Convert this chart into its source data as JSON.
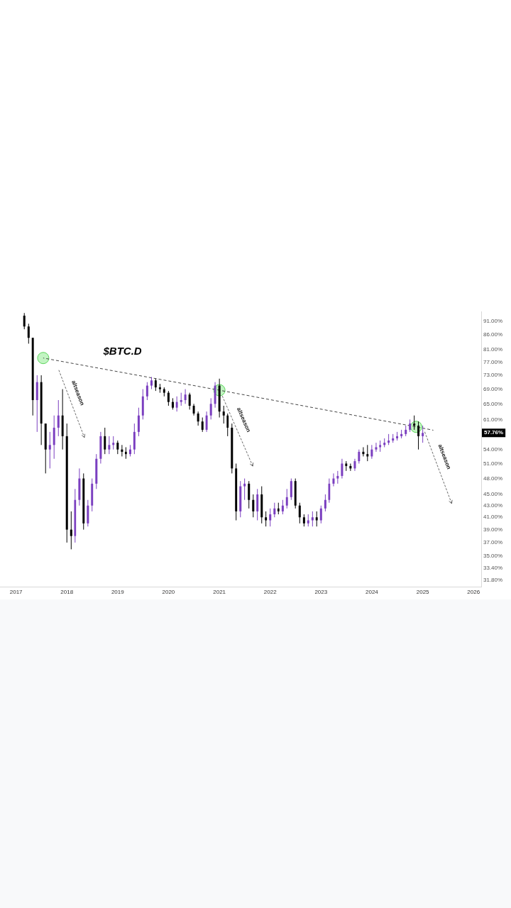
{
  "chart_data": {
    "type": "candlestick",
    "title": "$BTC.D",
    "log": true,
    "colors": [
      "#000000",
      "#000000",
      "#000000",
      "#7b3fc0",
      "#000000",
      "#000000",
      "#7b3fc0",
      "#7b3fc0",
      "#7b3fc0",
      "#000000",
      "#000000",
      "#000000",
      "#7b3fc0",
      "#7b3fc0",
      "#000000",
      "#7b3fc0",
      "#7b3fc0",
      "#7b3fc0",
      "#7b3fc0",
      "#000000",
      "#7b3fc0",
      "#7b3fc0",
      "#000000",
      "#000000",
      "#000000",
      "#7b3fc0",
      "#7b3fc0",
      "#7b3fc0",
      "#7b3fc0",
      "#7b3fc0",
      "#7b3fc0",
      "#000000",
      "#000000",
      "#000000",
      "#000000",
      "#000000",
      "#7b3fc0",
      "#7b3fc0",
      "#7b3fc0",
      "#000000",
      "#000000",
      "#000000",
      "#000000",
      "#7b3fc0",
      "#7b3fc0",
      "#7b3fc0",
      "#000000",
      "#000000",
      "#000000",
      "#000000",
      "#000000",
      "#7b3fc0",
      "#7b3fc0",
      "#000000",
      "#000000",
      "#7b3fc0",
      "#000000",
      "#000000",
      "#7b3fc0",
      "#7b3fc0",
      "#000000",
      "#7b3fc0",
      "#7b3fc0",
      "#7b3fc0",
      "#000000",
      "#000000",
      "#000000",
      "#7b3fc0",
      "#7b3fc0",
      "#000000",
      "#7b3fc0",
      "#7b3fc0",
      "#7b3fc0",
      "#7b3fc0",
      "#7b3fc0",
      "#7b3fc0",
      "#000000",
      "#000000",
      "#7b3fc0",
      "#7b3fc0",
      "#000000",
      "#000000",
      "#7b3fc0",
      "#7b3fc0",
      "#7b3fc0",
      "#7b3fc0",
      "#7b3fc0",
      "#7b3fc0",
      "#7b3fc0",
      "#7b3fc0",
      "#7b3fc0",
      "#7b3fc0",
      "#000000",
      "#000000",
      "#7b3fc0"
    ],
    "grid": false,
    "legend": false,
    "xlim": [
      "2016-09-10",
      "2026-02-25"
    ],
    "xticks": [
      {
        "value": "2017-01-01",
        "label": "2017"
      },
      {
        "value": "2018-01-01",
        "label": "2018"
      },
      {
        "value": "2019-01-01",
        "label": "2019"
      },
      {
        "value": "2020-01-01",
        "label": "2020"
      },
      {
        "value": "2021-01-01",
        "label": "2021"
      },
      {
        "value": "2022-01-01",
        "label": "2022"
      },
      {
        "value": "2023-01-01",
        "label": "2023"
      },
      {
        "value": "2024-01-01",
        "label": "2024"
      },
      {
        "value": "2025-01-01",
        "label": "2025"
      },
      {
        "value": "2026-01-01",
        "label": "2026"
      }
    ],
    "ylim": [
      30.9,
      94.4
    ],
    "yticks": [
      {
        "value": 91,
        "label": "91.00%"
      },
      {
        "value": 86,
        "label": "86.00%"
      },
      {
        "value": 81,
        "label": "81.00%"
      },
      {
        "value": 77,
        "label": "77.00%"
      },
      {
        "value": 73,
        "label": "73.00%"
      },
      {
        "value": 69,
        "label": "69.00%"
      },
      {
        "value": 65,
        "label": "65.00%"
      },
      {
        "value": 61,
        "label": "61.00%"
      },
      {
        "value": 54,
        "label": "54.00%"
      },
      {
        "value": 51,
        "label": "51.00%"
      },
      {
        "value": 48,
        "label": "48.00%"
      },
      {
        "value": 45,
        "label": "45.00%"
      },
      {
        "value": 43,
        "label": "43.00%"
      },
      {
        "value": 41,
        "label": "41.00%"
      },
      {
        "value": 39,
        "label": "39.00%"
      },
      {
        "value": 37,
        "label": "37.00%"
      },
      {
        "value": 35,
        "label": "35.00%"
      },
      {
        "value": 33.4,
        "label": "33.40%"
      },
      {
        "value": 31.8,
        "label": "31.80%"
      }
    ],
    "x": [
      "2017-03",
      "2017-04",
      "2017-05",
      "2017-06",
      "2017-07",
      "2017-08",
      "2017-09",
      "2017-10",
      "2017-11",
      "2017-12",
      "2018-01",
      "2018-02",
      "2018-03",
      "2018-04",
      "2018-05",
      "2018-06",
      "2018-07",
      "2018-08",
      "2018-09",
      "2018-10",
      "2018-11",
      "2018-12",
      "2019-01",
      "2019-02",
      "2019-03",
      "2019-04",
      "2019-05",
      "2019-06",
      "2019-07",
      "2019-08",
      "2019-09",
      "2019-10",
      "2019-11",
      "2019-12",
      "2020-01",
      "2020-02",
      "2020-03",
      "2020-04",
      "2020-05",
      "2020-06",
      "2020-07",
      "2020-08",
      "2020-09",
      "2020-10",
      "2020-11",
      "2020-12",
      "2021-01",
      "2021-02",
      "2021-03",
      "2021-04",
      "2021-05",
      "2021-06",
      "2021-07",
      "2021-08",
      "2021-09",
      "2021-10",
      "2021-11",
      "2021-12",
      "2022-01",
      "2022-02",
      "2022-03",
      "2022-04",
      "2022-05",
      "2022-06",
      "2022-07",
      "2022-08",
      "2022-09",
      "2022-10",
      "2022-11",
      "2022-12",
      "2023-01",
      "2023-02",
      "2023-03",
      "2023-04",
      "2023-05",
      "2023-06",
      "2023-07",
      "2023-08",
      "2023-09",
      "2023-10",
      "2023-11",
      "2023-12",
      "2024-01",
      "2024-02",
      "2024-03",
      "2024-04",
      "2024-05",
      "2024-06",
      "2024-07",
      "2024-08",
      "2024-09",
      "2024-10",
      "2024-11",
      "2024-12",
      "2025-01"
    ],
    "ohlc": [
      [
        93,
        94,
        88,
        89
      ],
      [
        89,
        90,
        83,
        85
      ],
      [
        85,
        85,
        62,
        66
      ],
      [
        66,
        73,
        58,
        71
      ],
      [
        71,
        73,
        55,
        60
      ],
      [
        60,
        60,
        49,
        54
      ],
      [
        54,
        58,
        50,
        55
      ],
      [
        55,
        62,
        52,
        59
      ],
      [
        59,
        66,
        57,
        62
      ],
      [
        62,
        69,
        54,
        57
      ],
      [
        57,
        60,
        37,
        39
      ],
      [
        39,
        42,
        36,
        38
      ],
      [
        38,
        46,
        37,
        44
      ],
      [
        44,
        50,
        43,
        48
      ],
      [
        48,
        49,
        39,
        40
      ],
      [
        40,
        44,
        39.5,
        43
      ],
      [
        43,
        48,
        42,
        47
      ],
      [
        47,
        53,
        46,
        52
      ],
      [
        52,
        58,
        51,
        57
      ],
      [
        57,
        59,
        53,
        54
      ],
      [
        54,
        57,
        53,
        55
      ],
      [
        55,
        57,
        54,
        55.5
      ],
      [
        55.5,
        56,
        53,
        54
      ],
      [
        54,
        55,
        52.5,
        53.5
      ],
      [
        53.5,
        54.5,
        52,
        53
      ],
      [
        53,
        55,
        52.5,
        54
      ],
      [
        54,
        60,
        53,
        58
      ],
      [
        58,
        64,
        57,
        62
      ],
      [
        62,
        69,
        61,
        67
      ],
      [
        67,
        71,
        66,
        70
      ],
      [
        70,
        72.5,
        69,
        71.5
      ],
      [
        71.5,
        72,
        68.5,
        69.5
      ],
      [
        69.5,
        70.5,
        68,
        69
      ],
      [
        69,
        69.5,
        67,
        68
      ],
      [
        68,
        68.5,
        64.5,
        65.5
      ],
      [
        65.5,
        66.5,
        63.5,
        64
      ],
      [
        64,
        67,
        63,
        65.5
      ],
      [
        65.5,
        68,
        64.5,
        66
      ],
      [
        66,
        69,
        65,
        67.5
      ],
      [
        67.5,
        68,
        63.5,
        64.5
      ],
      [
        64.5,
        65,
        62,
        62.5
      ],
      [
        62.5,
        63,
        59.5,
        60.5
      ],
      [
        60.5,
        61.5,
        58,
        58.5
      ],
      [
        58.5,
        63,
        58,
        62
      ],
      [
        62,
        66.5,
        61,
        65
      ],
      [
        65,
        71,
        64,
        70
      ],
      [
        70,
        72,
        61.5,
        63
      ],
      [
        63,
        64.5,
        60,
        62
      ],
      [
        62,
        62.5,
        57,
        59
      ],
      [
        59,
        60,
        49,
        50
      ],
      [
        50,
        51,
        40.5,
        42
      ],
      [
        42,
        47.5,
        41,
        46.5
      ],
      [
        46.5,
        48,
        44,
        47
      ],
      [
        47,
        47.5,
        42.5,
        44
      ],
      [
        44,
        45,
        41,
        42
      ],
      [
        42,
        46,
        40.5,
        45
      ],
      [
        45,
        46.5,
        40,
        41
      ],
      [
        41,
        42,
        39.5,
        40.5
      ],
      [
        40.5,
        42.5,
        39.5,
        41.5
      ],
      [
        41.5,
        43.5,
        41,
        42.5
      ],
      [
        42.5,
        43.5,
        41.5,
        42
      ],
      [
        42,
        44,
        41.5,
        43
      ],
      [
        43,
        46,
        42.5,
        44.5
      ],
      [
        44.5,
        48,
        44,
        47.5
      ],
      [
        47.5,
        48,
        42.5,
        43
      ],
      [
        43,
        43.5,
        40,
        41
      ],
      [
        41,
        41.5,
        39.5,
        40
      ],
      [
        40,
        41.5,
        39.5,
        40.5
      ],
      [
        40.5,
        42,
        39.5,
        41
      ],
      [
        41,
        42,
        39.5,
        40.5
      ],
      [
        40.5,
        43,
        40,
        42.5
      ],
      [
        42.5,
        45,
        42,
        44
      ],
      [
        44,
        48,
        43.5,
        47
      ],
      [
        47,
        49,
        46.5,
        48
      ],
      [
        48,
        49.5,
        47,
        48.5
      ],
      [
        48.5,
        52,
        48,
        51
      ],
      [
        51,
        51.5,
        49.5,
        50.5
      ],
      [
        50.5,
        51,
        49.5,
        50
      ],
      [
        50,
        52,
        49.5,
        51.5
      ],
      [
        51.5,
        54,
        51,
        53.5
      ],
      [
        53.5,
        54.5,
        52.5,
        53
      ],
      [
        53,
        55,
        51.5,
        52.5
      ],
      [
        52.5,
        55,
        52,
        54
      ],
      [
        54,
        55.5,
        53.5,
        54.5
      ],
      [
        54.5,
        56,
        53.5,
        55
      ],
      [
        55,
        56.5,
        54.5,
        55.5
      ],
      [
        55.5,
        57.5,
        55,
        56
      ],
      [
        56,
        57.5,
        55.5,
        56.5
      ],
      [
        56.5,
        58,
        56,
        57
      ],
      [
        57,
        58.5,
        56.5,
        57.5
      ],
      [
        57.5,
        59.5,
        57,
        58.5
      ],
      [
        58.5,
        61,
        58,
        60
      ],
      [
        60,
        62,
        58.5,
        59.5
      ],
      [
        59.5,
        60.5,
        54,
        57
      ],
      [
        57,
        59.5,
        55.5,
        57.76
      ]
    ],
    "series": [
      {
        "type": "line",
        "x": [
          "2017-07-15",
          "2021-01-01",
          "2024-11-15",
          "2025-03-18"
        ],
        "values": [
          78.3,
          68.7,
          59.2,
          58.4
        ],
        "color": "#444444",
        "line_style": "dashed"
      }
    ],
    "annotations": [
      "altseason",
      "altseason",
      "altseason",
      "57.76%"
    ]
  }
}
